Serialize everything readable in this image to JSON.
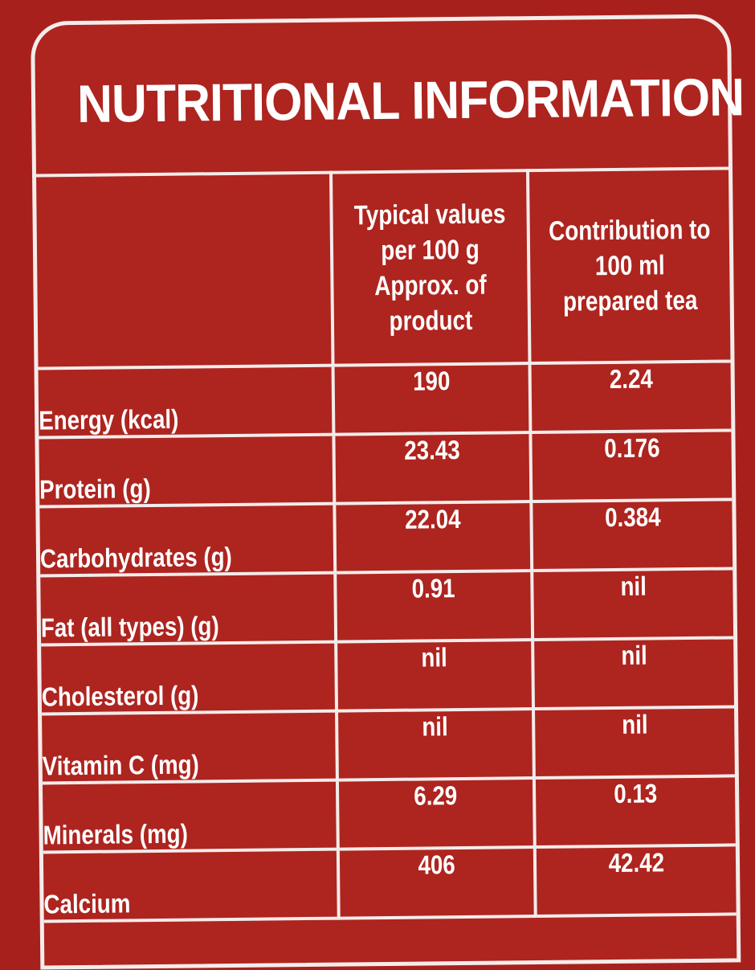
{
  "title": "NUTRITIONAL INFORMATION",
  "columns": {
    "nutrient": "",
    "per_100g": "Typical values per 100 g Approx. of product",
    "per_100ml": "Contribution to 100 ml prepared tea"
  },
  "rows": [
    {
      "nutrient": "Energy (kcal)",
      "per_100g": "190",
      "per_100ml": "2.24"
    },
    {
      "nutrient": "Protein (g)",
      "per_100g": "23.43",
      "per_100ml": "0.176"
    },
    {
      "nutrient": "Carbohydrates (g)",
      "per_100g": "22.04",
      "per_100ml": "0.384"
    },
    {
      "nutrient": "Fat (all types) (g)",
      "per_100g": "0.91",
      "per_100ml": "nil"
    },
    {
      "nutrient": "Cholesterol (g)",
      "per_100g": "nil",
      "per_100ml": "nil"
    },
    {
      "nutrient": "Vitamin C (mg)",
      "per_100g": "nil",
      "per_100ml": "nil"
    },
    {
      "nutrient": "Minerals (mg)",
      "per_100g": "6.29",
      "per_100ml": "0.13"
    },
    {
      "nutrient": "Calcium",
      "per_100g": "406",
      "per_100ml": "42.42"
    }
  ],
  "colors": {
    "background": "#a8201c",
    "panel": "#ae241f",
    "lines": "#f4ecea",
    "text": "#ffffff"
  }
}
